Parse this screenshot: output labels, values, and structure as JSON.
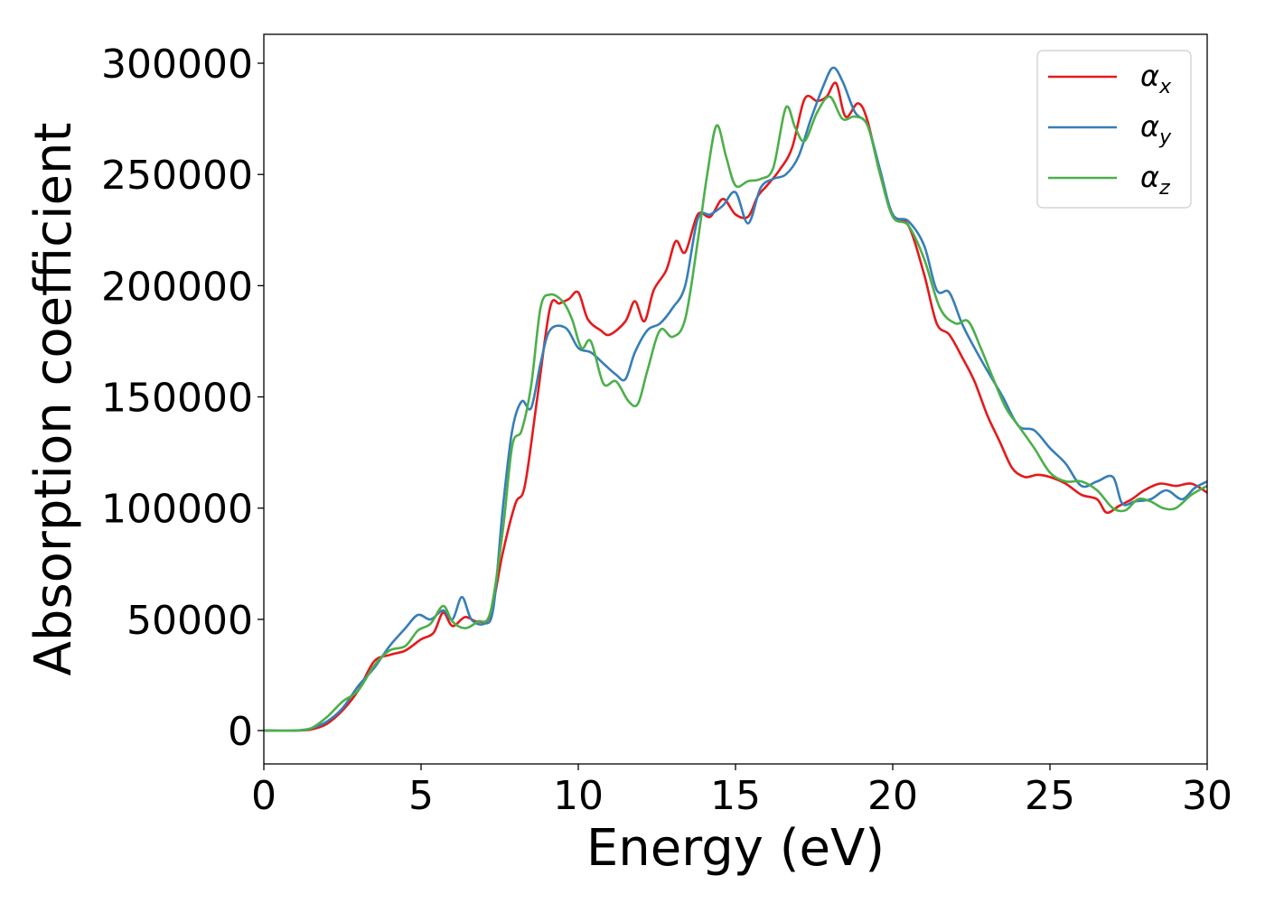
{
  "chart_data": {
    "type": "line",
    "title": "",
    "xlabel": "Energy (eV)",
    "ylabel": "Absorption coefficient",
    "xlim": [
      0,
      30
    ],
    "ylim": [
      -15000,
      313000
    ],
    "xticks": [
      0,
      5,
      10,
      15,
      20,
      25,
      30
    ],
    "xtick_labels": [
      "0",
      "5",
      "10",
      "15",
      "20",
      "25",
      "30"
    ],
    "yticks": [
      0,
      50000,
      100000,
      150000,
      200000,
      250000,
      300000
    ],
    "ytick_labels": [
      "0",
      "50000",
      "100000",
      "150000",
      "200000",
      "250000",
      "300000"
    ],
    "grid": false,
    "legend_position": "top-right",
    "series": [
      {
        "name": "α",
        "sub": "x",
        "color": "#e41a1c",
        "points": [
          [
            0,
            0
          ],
          [
            1,
            0
          ],
          [
            1.5,
            500
          ],
          [
            2,
            3000
          ],
          [
            2.5,
            9000
          ],
          [
            3,
            18000
          ],
          [
            3.5,
            31000
          ],
          [
            4,
            34000
          ],
          [
            4.5,
            36000
          ],
          [
            5,
            41000
          ],
          [
            5.4,
            44000
          ],
          [
            5.7,
            53000
          ],
          [
            6,
            47000
          ],
          [
            6.4,
            51000
          ],
          [
            6.8,
            49000
          ],
          [
            7.2,
            52000
          ],
          [
            7.6,
            80000
          ],
          [
            8,
            102000
          ],
          [
            8.3,
            110000
          ],
          [
            8.7,
            150000
          ],
          [
            9.1,
            190000
          ],
          [
            9.4,
            192000
          ],
          [
            9.7,
            194000
          ],
          [
            10,
            197000
          ],
          [
            10.3,
            185000
          ],
          [
            10.7,
            180000
          ],
          [
            11,
            178000
          ],
          [
            11.5,
            184000
          ],
          [
            11.8,
            193000
          ],
          [
            12.1,
            184000
          ],
          [
            12.4,
            198000
          ],
          [
            12.8,
            207000
          ],
          [
            13.1,
            220000
          ],
          [
            13.4,
            215000
          ],
          [
            13.8,
            232000
          ],
          [
            14.2,
            231000
          ],
          [
            14.6,
            239000
          ],
          [
            15,
            232000
          ],
          [
            15.4,
            231000
          ],
          [
            15.7,
            240000
          ],
          [
            16,
            245000
          ],
          [
            16.4,
            252000
          ],
          [
            16.8,
            262000
          ],
          [
            17.2,
            284000
          ],
          [
            17.6,
            283000
          ],
          [
            17.9,
            285000
          ],
          [
            18.2,
            291000
          ],
          [
            18.5,
            276000
          ],
          [
            18.9,
            282000
          ],
          [
            19.2,
            274000
          ],
          [
            19.6,
            250000
          ],
          [
            20,
            232000
          ],
          [
            20.5,
            227000
          ],
          [
            21,
            205000
          ],
          [
            21.4,
            183000
          ],
          [
            21.8,
            178000
          ],
          [
            22.2,
            168000
          ],
          [
            22.6,
            157000
          ],
          [
            23,
            142000
          ],
          [
            23.4,
            130000
          ],
          [
            23.8,
            118000
          ],
          [
            24.2,
            114000
          ],
          [
            24.6,
            115000
          ],
          [
            25,
            114000
          ],
          [
            25.5,
            111000
          ],
          [
            26,
            106000
          ],
          [
            26.5,
            104000
          ],
          [
            26.8,
            98000
          ],
          [
            27.2,
            101000
          ],
          [
            27.6,
            104000
          ],
          [
            28,
            108000
          ],
          [
            28.5,
            111000
          ],
          [
            29,
            110000
          ],
          [
            29.5,
            111000
          ],
          [
            30,
            107000
          ]
        ]
      },
      {
        "name": "α",
        "sub": "y",
        "color": "#377eb8",
        "points": [
          [
            0,
            0
          ],
          [
            1,
            0
          ],
          [
            1.5,
            1000
          ],
          [
            2,
            4000
          ],
          [
            2.5,
            10000
          ],
          [
            3,
            20000
          ],
          [
            3.5,
            28000
          ],
          [
            4,
            38000
          ],
          [
            4.5,
            46000
          ],
          [
            4.9,
            52000
          ],
          [
            5.3,
            50000
          ],
          [
            5.7,
            54000
          ],
          [
            6,
            50000
          ],
          [
            6.3,
            60000
          ],
          [
            6.6,
            50000
          ],
          [
            7,
            48000
          ],
          [
            7.3,
            55000
          ],
          [
            7.6,
            100000
          ],
          [
            7.9,
            135000
          ],
          [
            8.2,
            148000
          ],
          [
            8.5,
            145000
          ],
          [
            8.8,
            165000
          ],
          [
            9.1,
            180000
          ],
          [
            9.6,
            181000
          ],
          [
            10,
            172000
          ],
          [
            10.4,
            170000
          ],
          [
            10.8,
            165000
          ],
          [
            11.2,
            160000
          ],
          [
            11.5,
            158000
          ],
          [
            11.8,
            170000
          ],
          [
            12.2,
            180000
          ],
          [
            12.6,
            183000
          ],
          [
            13,
            190000
          ],
          [
            13.4,
            200000
          ],
          [
            13.8,
            230000
          ],
          [
            14.2,
            232000
          ],
          [
            14.6,
            236000
          ],
          [
            15,
            242000
          ],
          [
            15.4,
            228000
          ],
          [
            15.8,
            244000
          ],
          [
            16.2,
            248000
          ],
          [
            16.6,
            250000
          ],
          [
            17,
            258000
          ],
          [
            17.4,
            275000
          ],
          [
            17.8,
            290000
          ],
          [
            18.1,
            298000
          ],
          [
            18.4,
            292000
          ],
          [
            18.8,
            278000
          ],
          [
            19.2,
            272000
          ],
          [
            19.6,
            252000
          ],
          [
            20,
            232000
          ],
          [
            20.5,
            229000
          ],
          [
            21,
            218000
          ],
          [
            21.4,
            198000
          ],
          [
            21.8,
            197000
          ],
          [
            22.2,
            183000
          ],
          [
            22.6,
            172000
          ],
          [
            23,
            162000
          ],
          [
            23.5,
            150000
          ],
          [
            24,
            137000
          ],
          [
            24.5,
            135000
          ],
          [
            25,
            127000
          ],
          [
            25.5,
            120000
          ],
          [
            26,
            110000
          ],
          [
            26.5,
            112000
          ],
          [
            27,
            114000
          ],
          [
            27.3,
            102000
          ],
          [
            27.7,
            103000
          ],
          [
            28.2,
            104000
          ],
          [
            28.7,
            108000
          ],
          [
            29.2,
            104000
          ],
          [
            29.6,
            109000
          ],
          [
            30,
            112000
          ]
        ]
      },
      {
        "name": "α",
        "sub": "z",
        "color": "#4daf4a",
        "points": [
          [
            0,
            0
          ],
          [
            1,
            0
          ],
          [
            1.5,
            1000
          ],
          [
            2,
            6000
          ],
          [
            2.5,
            13000
          ],
          [
            3,
            18000
          ],
          [
            3.5,
            29000
          ],
          [
            4,
            36000
          ],
          [
            4.5,
            38000
          ],
          [
            4.9,
            45000
          ],
          [
            5.3,
            48000
          ],
          [
            5.7,
            56000
          ],
          [
            6,
            49000
          ],
          [
            6.4,
            46000
          ],
          [
            6.8,
            49000
          ],
          [
            7.2,
            53000
          ],
          [
            7.6,
            90000
          ],
          [
            7.9,
            128000
          ],
          [
            8.2,
            135000
          ],
          [
            8.5,
            155000
          ],
          [
            8.8,
            190000
          ],
          [
            9.1,
            196000
          ],
          [
            9.5,
            193000
          ],
          [
            9.8,
            185000
          ],
          [
            10.1,
            172000
          ],
          [
            10.4,
            175000
          ],
          [
            10.8,
            156000
          ],
          [
            11.2,
            157000
          ],
          [
            11.6,
            148000
          ],
          [
            11.9,
            147000
          ],
          [
            12.2,
            162000
          ],
          [
            12.6,
            180000
          ],
          [
            13,
            177000
          ],
          [
            13.4,
            185000
          ],
          [
            13.8,
            220000
          ],
          [
            14.1,
            250000
          ],
          [
            14.4,
            272000
          ],
          [
            14.7,
            258000
          ],
          [
            15,
            245000
          ],
          [
            15.4,
            247000
          ],
          [
            15.8,
            248000
          ],
          [
            16.2,
            253000
          ],
          [
            16.6,
            280000
          ],
          [
            16.9,
            271000
          ],
          [
            17.2,
            265000
          ],
          [
            17.6,
            278000
          ],
          [
            18,
            285000
          ],
          [
            18.4,
            275000
          ],
          [
            18.8,
            276000
          ],
          [
            19.2,
            272000
          ],
          [
            19.6,
            250000
          ],
          [
            20,
            231000
          ],
          [
            20.5,
            227000
          ],
          [
            21,
            212000
          ],
          [
            21.5,
            190000
          ],
          [
            22,
            183000
          ],
          [
            22.4,
            184000
          ],
          [
            22.8,
            172000
          ],
          [
            23.2,
            158000
          ],
          [
            23.6,
            145000
          ],
          [
            24,
            137000
          ],
          [
            24.5,
            127000
          ],
          [
            25,
            116000
          ],
          [
            25.5,
            112000
          ],
          [
            26,
            112000
          ],
          [
            26.5,
            108000
          ],
          [
            27,
            100000
          ],
          [
            27.4,
            99000
          ],
          [
            27.8,
            104000
          ],
          [
            28.2,
            103000
          ],
          [
            28.6,
            100000
          ],
          [
            29,
            100000
          ],
          [
            29.5,
            106000
          ],
          [
            30,
            110000
          ]
        ]
      }
    ]
  }
}
